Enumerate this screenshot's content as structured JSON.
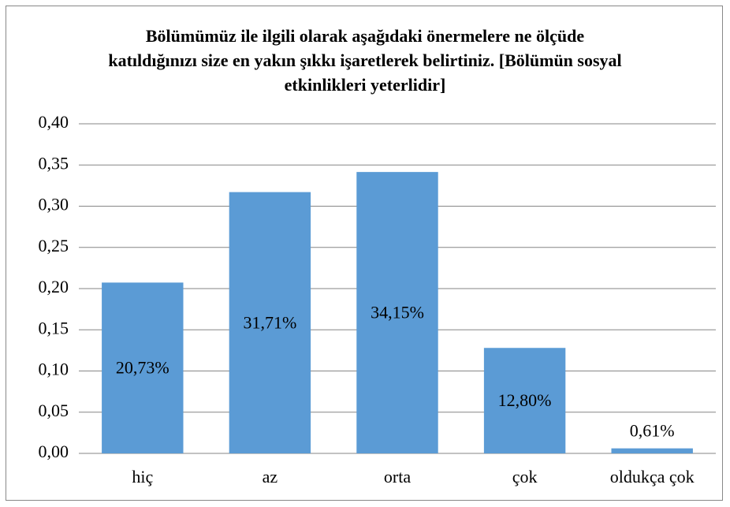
{
  "chart_data": {
    "type": "bar",
    "title": "Bölümümüz ile ilgili olarak aşağıdaki önermelere ne ölçüde katıldığınızı size en yakın şıkkı işaretlerek belirtiniz. [Bölümün sosyal etkinlikleri yeterlidir]",
    "categories": [
      "hiç",
      "az",
      "orta",
      "çok",
      "oldukça çok"
    ],
    "values": [
      0.2073,
      0.3171,
      0.3415,
      0.128,
      0.0061
    ],
    "value_labels": [
      "20,73%",
      "31,71%",
      "34,15%",
      "12,80%",
      "0,61%"
    ],
    "color": "#5b9bd5",
    "ylim": [
      0,
      0.4
    ],
    "yticks": [
      {
        "value": 0,
        "label": "0,00"
      },
      {
        "value": 0.05,
        "label": "0,05"
      },
      {
        "value": 0.1,
        "label": "0,10"
      },
      {
        "value": 0.15,
        "label": "0,15"
      },
      {
        "value": 0.2,
        "label": "0,20"
      },
      {
        "value": 0.25,
        "label": "0,25"
      },
      {
        "value": 0.3,
        "label": "0,30"
      },
      {
        "value": 0.35,
        "label": "0,35"
      },
      {
        "value": 0.4,
        "label": "0,40"
      }
    ],
    "grid": true
  }
}
